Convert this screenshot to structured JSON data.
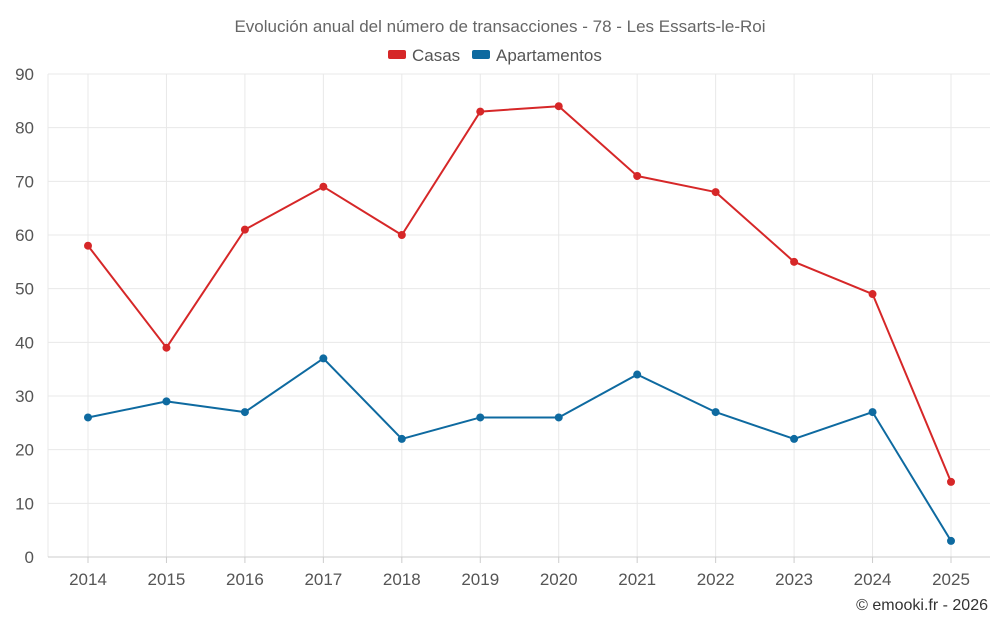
{
  "chart_data": {
    "type": "line",
    "title": "Evolución anual del número de transacciones - 78 - Les Essarts-le-Roi",
    "categories": [
      "2014",
      "2015",
      "2016",
      "2017",
      "2018",
      "2019",
      "2020",
      "2021",
      "2022",
      "2023",
      "2024",
      "2025"
    ],
    "series": [
      {
        "name": "Casas",
        "color": "#d62728",
        "values": [
          58,
          39,
          61,
          69,
          60,
          83,
          84,
          71,
          68,
          55,
          49,
          14
        ]
      },
      {
        "name": "Apartamentos",
        "color": "#0e6aa0",
        "values": [
          26,
          29,
          27,
          37,
          22,
          26,
          26,
          34,
          27,
          22,
          27,
          3
        ]
      }
    ],
    "ylim": [
      0,
      90
    ],
    "yticks": [
      0,
      10,
      20,
      30,
      40,
      50,
      60,
      70,
      80,
      90
    ],
    "grid": true,
    "legend_position": "top-center",
    "xlabel": "",
    "ylabel": ""
  },
  "credit": "© emooki.fr - 2026"
}
